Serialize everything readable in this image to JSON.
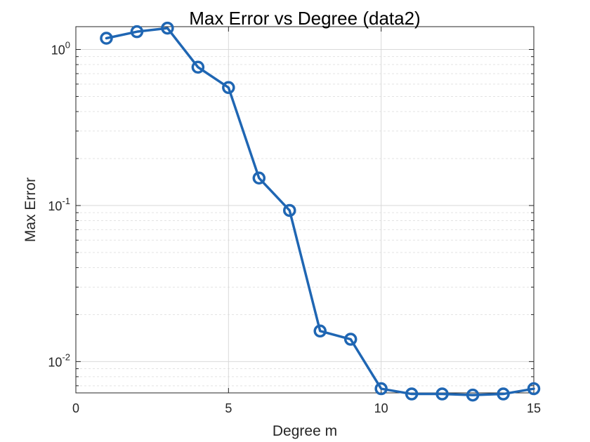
{
  "chart_data": {
    "type": "line",
    "title": "Max Error vs Degree (data2)",
    "xlabel": "Degree m",
    "ylabel": "Max Error",
    "xlim": [
      0,
      15
    ],
    "ylim": [
      0.0063,
      1.4
    ],
    "yscale": "log",
    "grid": true,
    "x_ticks": [
      0,
      5,
      10,
      15
    ],
    "y_ticks": [
      {
        "value": 1,
        "base": "10",
        "exp": "0"
      },
      {
        "value": 0.1,
        "base": "10",
        "exp": "-1"
      },
      {
        "value": 0.01,
        "base": "10",
        "exp": "-2"
      }
    ],
    "series": [
      {
        "color": "#1f66b3",
        "marker": "circle",
        "x": [
          1,
          2,
          3,
          4,
          5,
          6,
          7,
          8,
          9,
          10,
          11,
          12,
          13,
          14,
          15
        ],
        "y": [
          1.18,
          1.3,
          1.37,
          0.77,
          0.57,
          0.15,
          0.093,
          0.0157,
          0.0139,
          0.0067,
          0.0062,
          0.0062,
          0.0061,
          0.0062,
          0.0067
        ]
      }
    ]
  }
}
